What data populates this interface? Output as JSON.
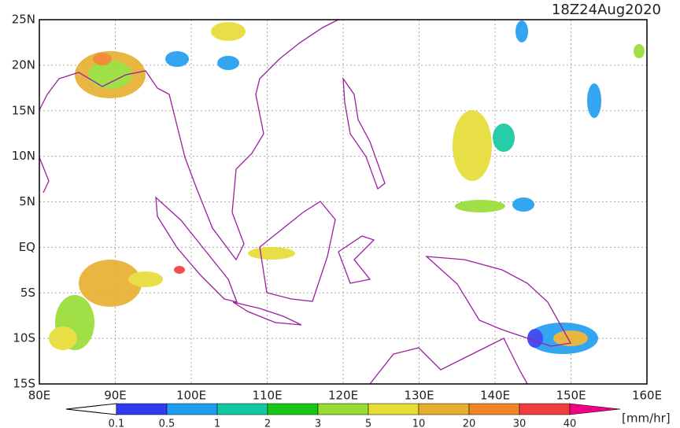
{
  "title": "18Z24Aug2020",
  "map": {
    "lat_labels": [
      "25N",
      "20N",
      "15N",
      "10N",
      "5N",
      "EQ",
      "5S",
      "10S",
      "15S"
    ],
    "lon_labels": [
      "80E",
      "90E",
      "100E",
      "110E",
      "120E",
      "130E",
      "140E",
      "150E",
      "160E"
    ]
  },
  "colorbar": {
    "ticks": [
      0.1,
      0.5,
      1,
      2,
      3,
      5,
      10,
      20,
      30,
      40
    ],
    "under_color": "#ffffff",
    "colors": [
      "#2f3cf0",
      "#1e9cf0",
      "#10c8a0",
      "#14c814",
      "#96dc32",
      "#e6dc32",
      "#e6af2d",
      "#f08228",
      "#f03c3c"
    ],
    "over_color": "#f00082",
    "unit": "[mm/hr]"
  }
}
